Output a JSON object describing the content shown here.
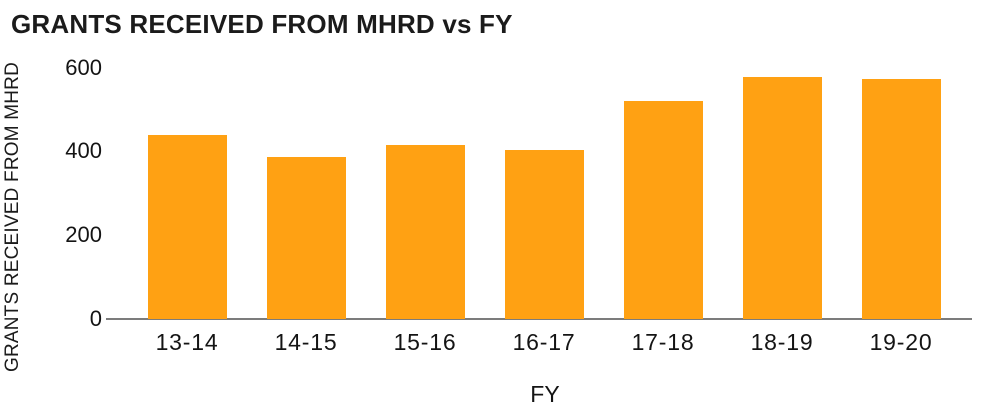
{
  "chart_data": {
    "type": "bar",
    "title": "GRANTS RECEIVED FROM MHRD vs FY",
    "xlabel": "FY",
    "ylabel": "GRANTS RECEIVED FROM MHRD",
    "categories": [
      "13-14",
      "14-15",
      "15-16",
      "16-17",
      "17-18",
      "18-19",
      "19-20"
    ],
    "values": [
      440,
      386,
      415,
      403,
      520,
      578,
      572
    ],
    "yticks": [
      0,
      200,
      400,
      600
    ],
    "ylim": [
      0,
      618
    ],
    "grid": false,
    "legend": "none",
    "bar_color": "#FFA113",
    "axis_line_color": "#7c7c7c",
    "text_color": "#1a1a1a",
    "background_color": "#ffffff"
  }
}
